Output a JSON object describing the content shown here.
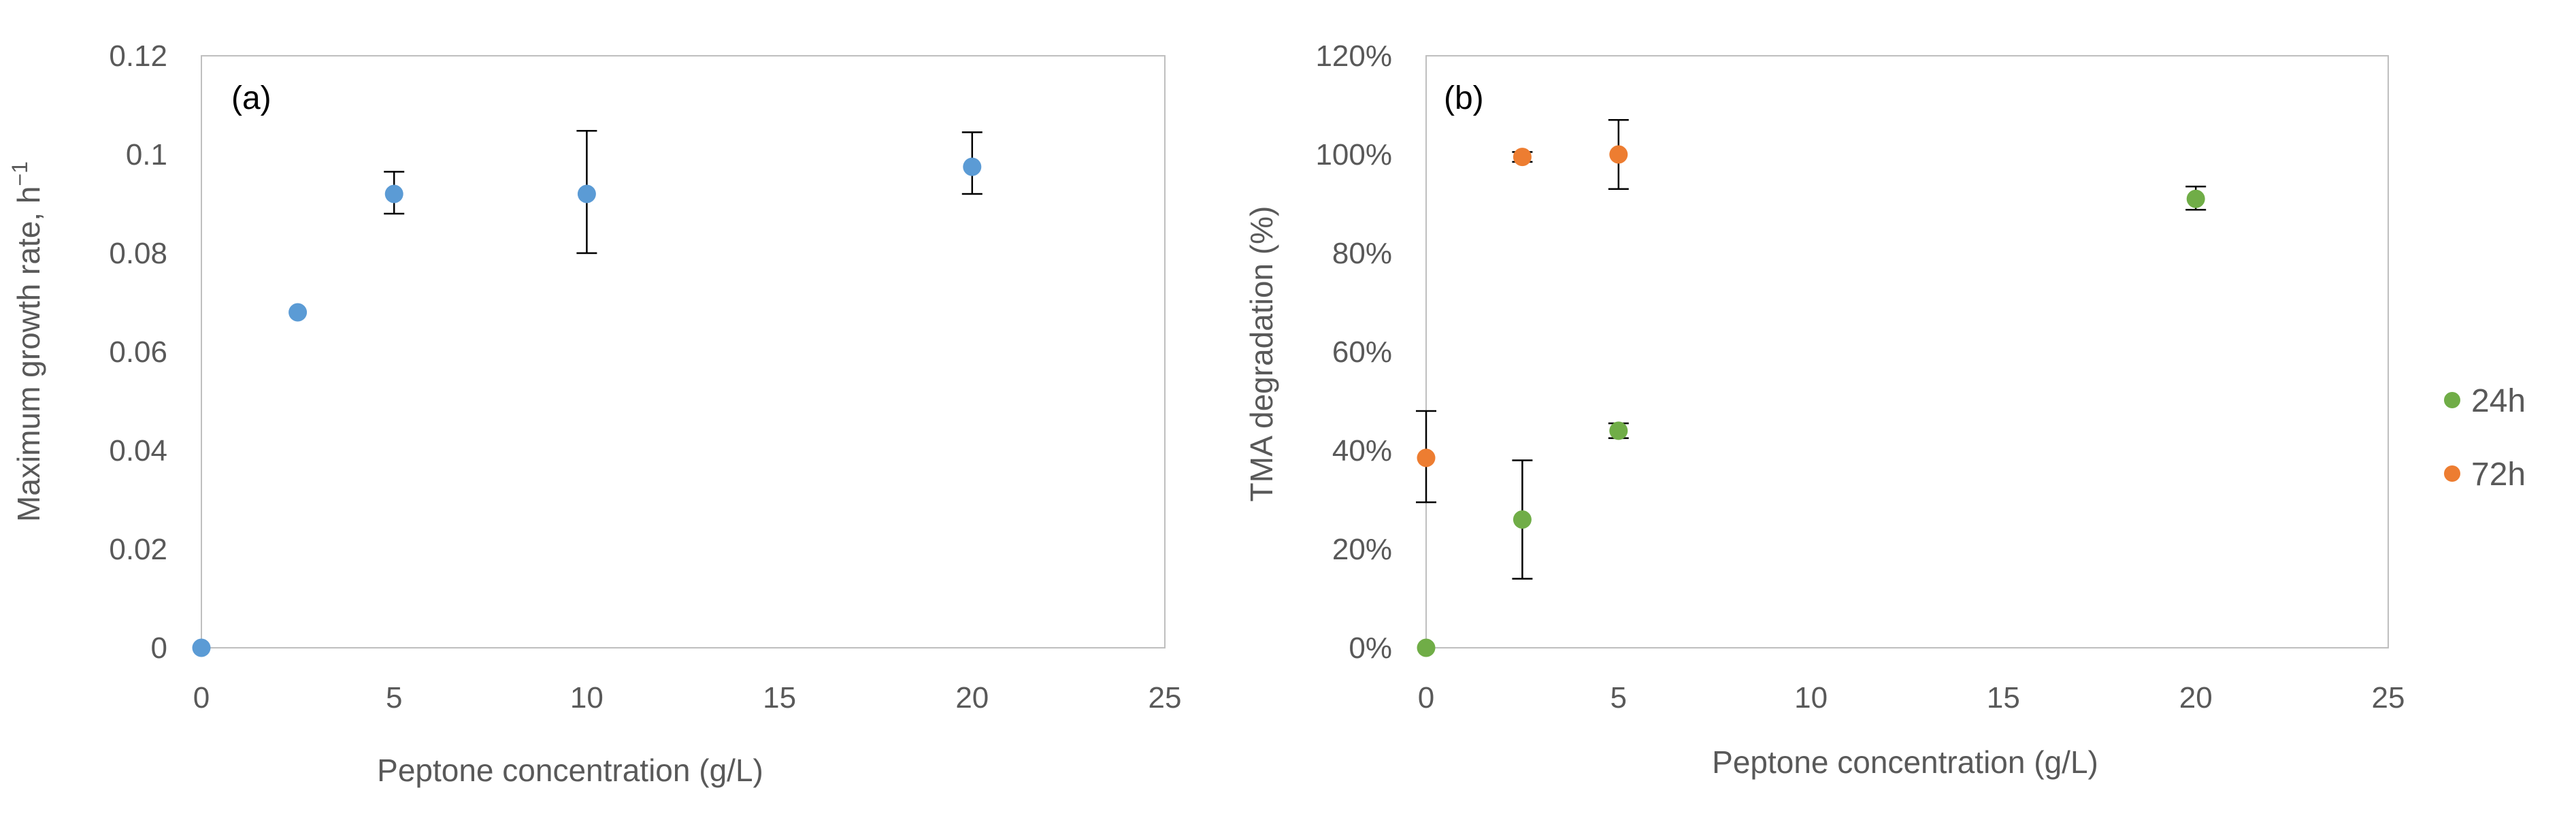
{
  "chart_data": [
    {
      "type": "scatter",
      "panel_label": "(a)",
      "xlabel": "Peptone concentration (g/L)",
      "ylabel": "Maximum growth rate, h",
      "ylabel_superscript": "−1",
      "xlim": [
        0,
        25
      ],
      "ylim": [
        0,
        0.12
      ],
      "x_ticks": [
        0,
        5,
        10,
        15,
        20,
        25
      ],
      "x_tick_labels": [
        "0",
        "5",
        "10",
        "15",
        "20",
        "25"
      ],
      "y_ticks": [
        0,
        0.02,
        0.04,
        0.06,
        0.08,
        0.1,
        0.12
      ],
      "y_tick_labels": [
        "0",
        "0.02",
        "0.04",
        "0.06",
        "0.08",
        "0.1",
        "0.12"
      ],
      "grid": false,
      "series": [
        {
          "name": "Maximum growth rate",
          "color": "#5b9bd5",
          "points": [
            {
              "x": 0,
              "y": 0,
              "err_low": 0,
              "err_high": 0
            },
            {
              "x": 2.5,
              "y": 0.068,
              "err_low": 0,
              "err_high": 0
            },
            {
              "x": 5,
              "y": 0.092,
              "err_low": 0.004,
              "err_high": 0.0045
            },
            {
              "x": 10,
              "y": 0.092,
              "err_low": 0.012,
              "err_high": 0.0128
            },
            {
              "x": 20,
              "y": 0.0975,
              "err_low": 0.0055,
              "err_high": 0.007
            }
          ]
        }
      ]
    },
    {
      "type": "scatter",
      "panel_label": "(b)",
      "xlabel": "Peptone concentration (g/L)",
      "ylabel": "TMA degradation (%)",
      "xlim": [
        0,
        25
      ],
      "ylim": [
        0,
        120
      ],
      "x_ticks": [
        0,
        5,
        10,
        15,
        20,
        25
      ],
      "x_tick_labels": [
        "0",
        "5",
        "10",
        "15",
        "20",
        "25"
      ],
      "y_ticks": [
        0,
        20,
        40,
        60,
        80,
        100,
        120
      ],
      "y_tick_labels": [
        "0%",
        "20%",
        "40%",
        "60%",
        "80%",
        "100%",
        "120%"
      ],
      "grid": false,
      "legend_position": "right",
      "series": [
        {
          "name": "24h",
          "color": "#70ad47",
          "points": [
            {
              "x": 0,
              "y": 0,
              "err_low": 0,
              "err_high": 0
            },
            {
              "x": 2.5,
              "y": 26,
              "err_low": 12,
              "err_high": 12
            },
            {
              "x": 5,
              "y": 44,
              "err_low": 1.5,
              "err_high": 1.5
            },
            {
              "x": 20,
              "y": 91,
              "err_low": 2.2,
              "err_high": 2.5
            }
          ]
        },
        {
          "name": "72h",
          "color": "#ed7d31",
          "points": [
            {
              "x": 0,
              "y": 38.5,
              "err_low": 9,
              "err_high": 9.5
            },
            {
              "x": 2.5,
              "y": 99.5,
              "err_low": 1,
              "err_high": 1
            },
            {
              "x": 5,
              "y": 100,
              "err_low": 7,
              "err_high": 7
            }
          ]
        }
      ]
    }
  ]
}
